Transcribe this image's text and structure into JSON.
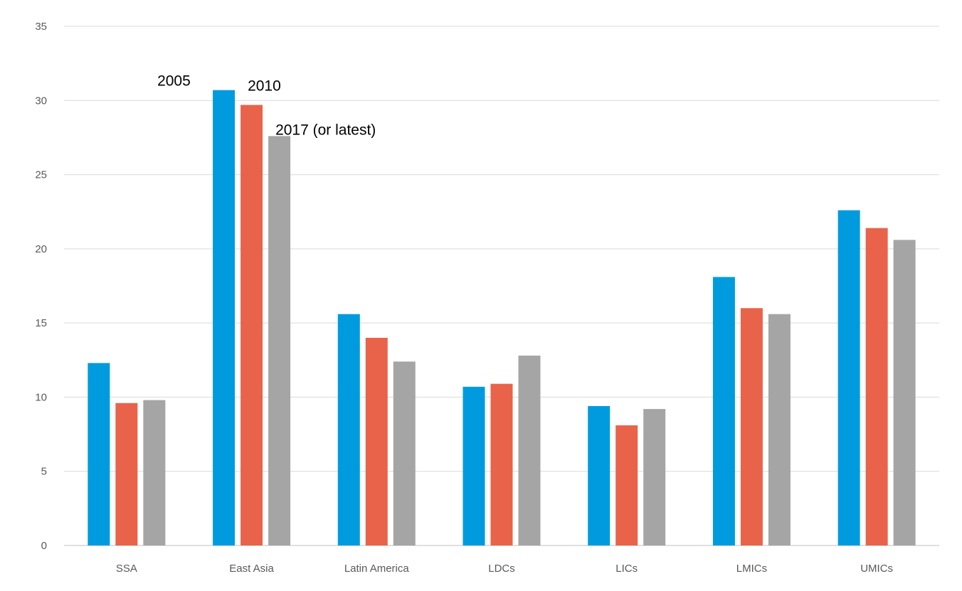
{
  "chart_data": {
    "type": "bar",
    "categories": [
      "SSA",
      "East Asia",
      "Latin America",
      "LDCs",
      "LICs",
      "LMICs",
      "UMICs"
    ],
    "series": [
      {
        "name": "2005",
        "color": "#009bde",
        "values": [
          12.3,
          30.7,
          15.6,
          10.7,
          9.4,
          18.1,
          22.6
        ]
      },
      {
        "name": "2010",
        "color": "#e8634a",
        "values": [
          9.6,
          29.7,
          14.0,
          10.9,
          8.1,
          16.0,
          21.4
        ]
      },
      {
        "name": "2017 (or latest)",
        "color": "#a5a5a5",
        "values": [
          9.8,
          27.6,
          12.4,
          12.8,
          9.2,
          15.6,
          20.6
        ]
      }
    ],
    "ylim": [
      0,
      35
    ],
    "yticks": [
      0,
      5,
      10,
      15,
      20,
      25,
      30,
      35
    ],
    "grid": true,
    "legend": "annotations-above-east-asia-bars"
  }
}
